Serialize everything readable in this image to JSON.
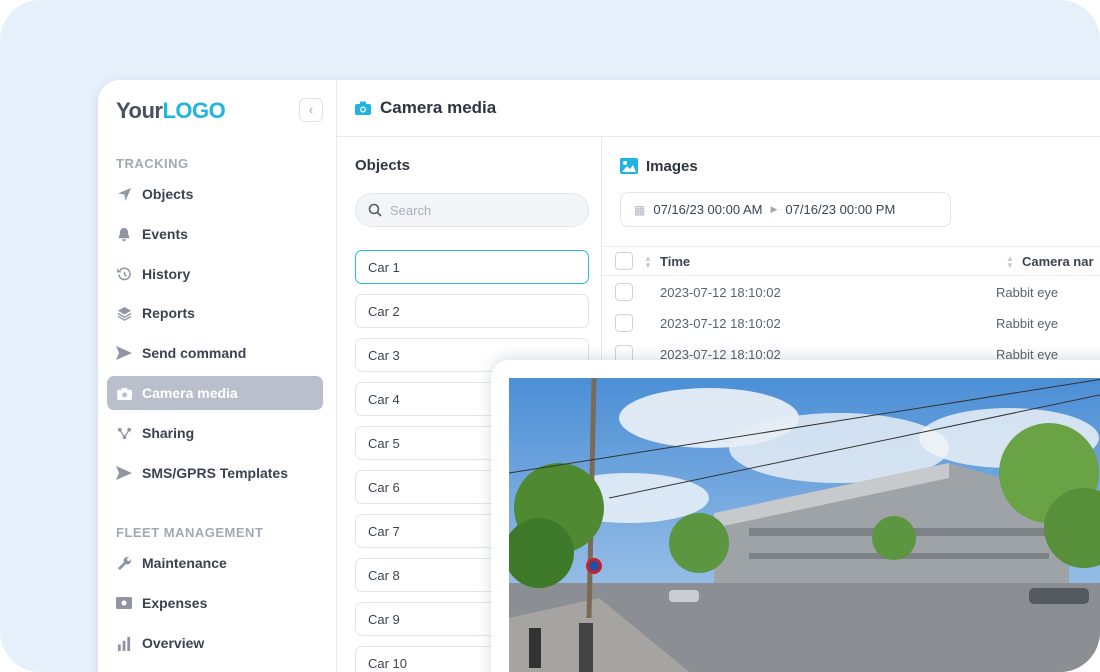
{
  "logo": {
    "part1": "Your",
    "part2": "LOGO"
  },
  "sidebar": {
    "sections": [
      {
        "label": "TRACKING"
      },
      {
        "label": "FLEET MANAGEMENT"
      }
    ],
    "items": [
      {
        "label": "Objects",
        "icon": "navigation-arrow-icon"
      },
      {
        "label": "Events",
        "icon": "bell-icon"
      },
      {
        "label": "History",
        "icon": "history-icon"
      },
      {
        "label": "Reports",
        "icon": "layers-icon"
      },
      {
        "label": "Send command",
        "icon": "send-icon"
      },
      {
        "label": "Camera media",
        "icon": "camera-icon",
        "active": true
      },
      {
        "label": "Sharing",
        "icon": "share-icon"
      },
      {
        "label": "SMS/GPRS Templates",
        "icon": "send-icon"
      },
      {
        "label": "Maintenance",
        "icon": "wrench-icon"
      },
      {
        "label": "Expenses",
        "icon": "money-icon"
      },
      {
        "label": "Overview",
        "icon": "bar-chart-icon"
      }
    ]
  },
  "header": {
    "title": "Camera media"
  },
  "objects": {
    "title": "Objects",
    "search_placeholder": "Search",
    "cars": [
      "Car 1",
      "Car 2",
      "Car 3",
      "Car 4",
      "Car 5",
      "Car 6",
      "Car 7",
      "Car 8",
      "Car 9",
      "Car 10"
    ]
  },
  "images": {
    "title": "Images",
    "date_from": "07/16/23 00:00 AM",
    "date_to": "07/16/23 00:00 PM",
    "columns": [
      "Time",
      "Camera nar"
    ],
    "rows": [
      {
        "time": "2023-07-12 18:10:02",
        "camera": "Rabbit eye"
      },
      {
        "time": "2023-07-12 18:10:02",
        "camera": "Rabbit eye"
      },
      {
        "time": "2023-07-12 18:10:02",
        "camera": "Rabbit eye"
      }
    ]
  },
  "colors": {
    "accent": "#1fb5e0",
    "active_item": "#b9c0cb"
  }
}
